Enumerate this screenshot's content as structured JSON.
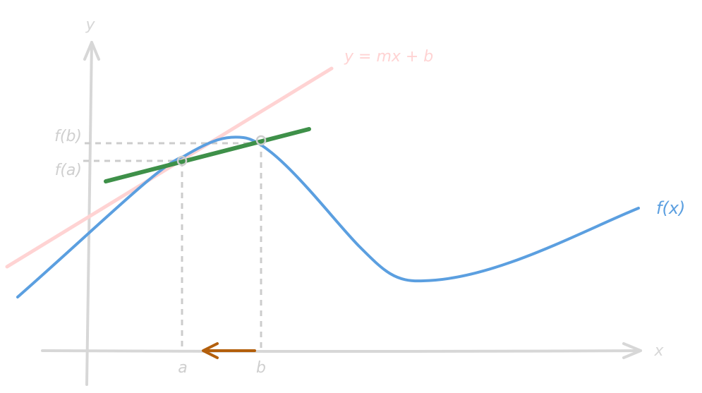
{
  "diagram": {
    "axis_labels": {
      "x": "x",
      "y": "y"
    },
    "curve_label": "f(x)",
    "line_label": "y = mx + b",
    "points": [
      {
        "x_label": "a",
        "y_label": "f(a)"
      },
      {
        "x_label": "b",
        "y_label": "f(b)"
      }
    ],
    "colors": {
      "axes": "#d7d7d7",
      "guides": "#cccccc",
      "curve": "#5b9fe0",
      "tangent_line": "#ffd3d3",
      "secant_line": "#3e9049",
      "arrow": "#b35f0c",
      "faded_text": "#cfcfcf"
    }
  }
}
